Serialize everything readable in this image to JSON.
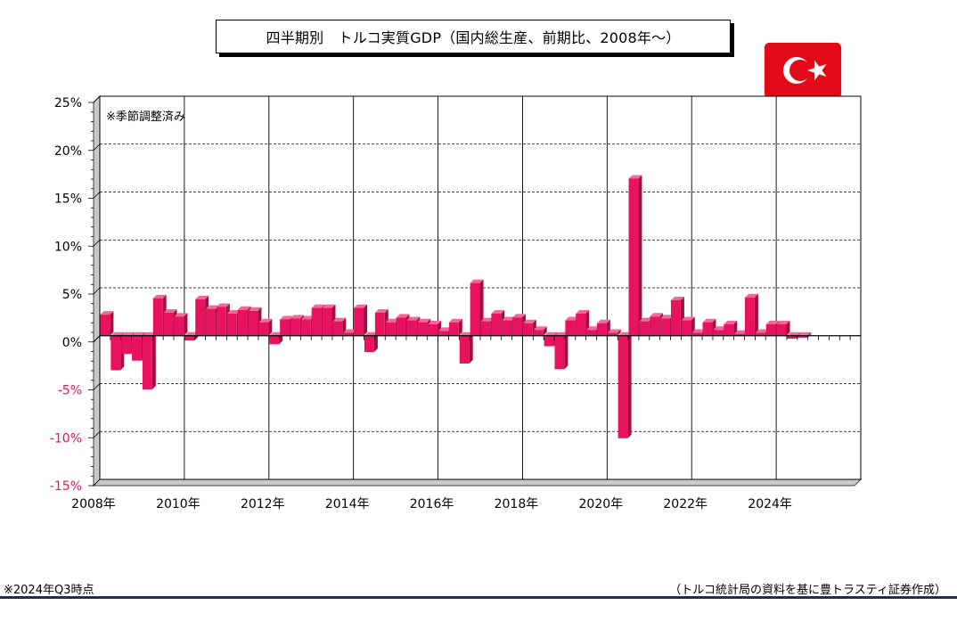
{
  "title": "四半期別　トルコ実質GDP（国内総生産、前期比、2008年～）",
  "annotation": "※季節調整済み",
  "footnote_left": "※2024年Q3時点",
  "footnote_right": "（トルコ統計局の資料を基に豊トラスティ証券作成）",
  "flag_icon": "turkey-flag-icon",
  "colors": {
    "bar": "#e8125f",
    "bar_dark": "#a30d43",
    "negative_label": "#e8125f"
  },
  "chart_data": {
    "type": "bar",
    "title": "四半期別　トルコ実質GDP（国内総生産、前期比、2008年～）",
    "unit": "%",
    "ylim": [
      -15,
      25
    ],
    "yticks": [
      25,
      20,
      15,
      10,
      5,
      0,
      -5,
      -10,
      -15
    ],
    "ytick_labels": [
      "25%",
      "20%",
      "15%",
      "10%",
      "5%",
      "0%",
      "-5%",
      "-10%",
      "-15%"
    ],
    "xlim": [
      "2008Q1",
      "2025Q4"
    ],
    "xtick_labels": [
      "2008年",
      "2010年",
      "2012年",
      "2014年",
      "2016年",
      "2018年",
      "2020年",
      "2022年",
      "2024年"
    ],
    "grid": true,
    "quarters": [
      "2008Q1",
      "2008Q2",
      "2008Q3",
      "2008Q4",
      "2009Q1",
      "2009Q2",
      "2009Q3",
      "2009Q4",
      "2010Q1",
      "2010Q2",
      "2010Q3",
      "2010Q4",
      "2011Q1",
      "2011Q2",
      "2011Q3",
      "2011Q4",
      "2012Q1",
      "2012Q2",
      "2012Q3",
      "2012Q4",
      "2013Q1",
      "2013Q2",
      "2013Q3",
      "2013Q4",
      "2014Q1",
      "2014Q2",
      "2014Q3",
      "2014Q4",
      "2015Q1",
      "2015Q2",
      "2015Q3",
      "2015Q4",
      "2016Q1",
      "2016Q2",
      "2016Q3",
      "2016Q4",
      "2017Q1",
      "2017Q2",
      "2017Q3",
      "2017Q4",
      "2018Q1",
      "2018Q2",
      "2018Q3",
      "2018Q4",
      "2019Q1",
      "2019Q2",
      "2019Q3",
      "2019Q4",
      "2020Q1",
      "2020Q2",
      "2020Q3",
      "2020Q4",
      "2021Q1",
      "2021Q2",
      "2021Q3",
      "2021Q4",
      "2022Q1",
      "2022Q2",
      "2022Q3",
      "2022Q4",
      "2023Q1",
      "2023Q2",
      "2023Q3",
      "2023Q4",
      "2024Q1",
      "2024Q2",
      "2024Q3"
    ],
    "values": [
      2.2,
      -3.6,
      -1.9,
      -2.6,
      -5.6,
      3.9,
      2.4,
      2.0,
      -0.5,
      3.8,
      2.8,
      3.0,
      2.3,
      2.7,
      2.6,
      1.4,
      -0.9,
      1.7,
      1.8,
      1.7,
      2.9,
      2.9,
      1.5,
      0.3,
      2.9,
      -1.7,
      2.4,
      1.4,
      1.9,
      1.6,
      1.4,
      1.2,
      0.5,
      1.4,
      -2.9,
      5.5,
      1.5,
      2.3,
      1.6,
      1.9,
      1.3,
      0.6,
      -1.1,
      -3.5,
      1.6,
      2.3,
      0.6,
      1.3,
      0.3,
      -10.7,
      16.4,
      1.5,
      2.0,
      1.8,
      3.7,
      1.6,
      0.3,
      1.4,
      0.6,
      1.2,
      0.2,
      4.0,
      0.3,
      1.2,
      1.2,
      -0.3,
      -0.2
    ]
  }
}
